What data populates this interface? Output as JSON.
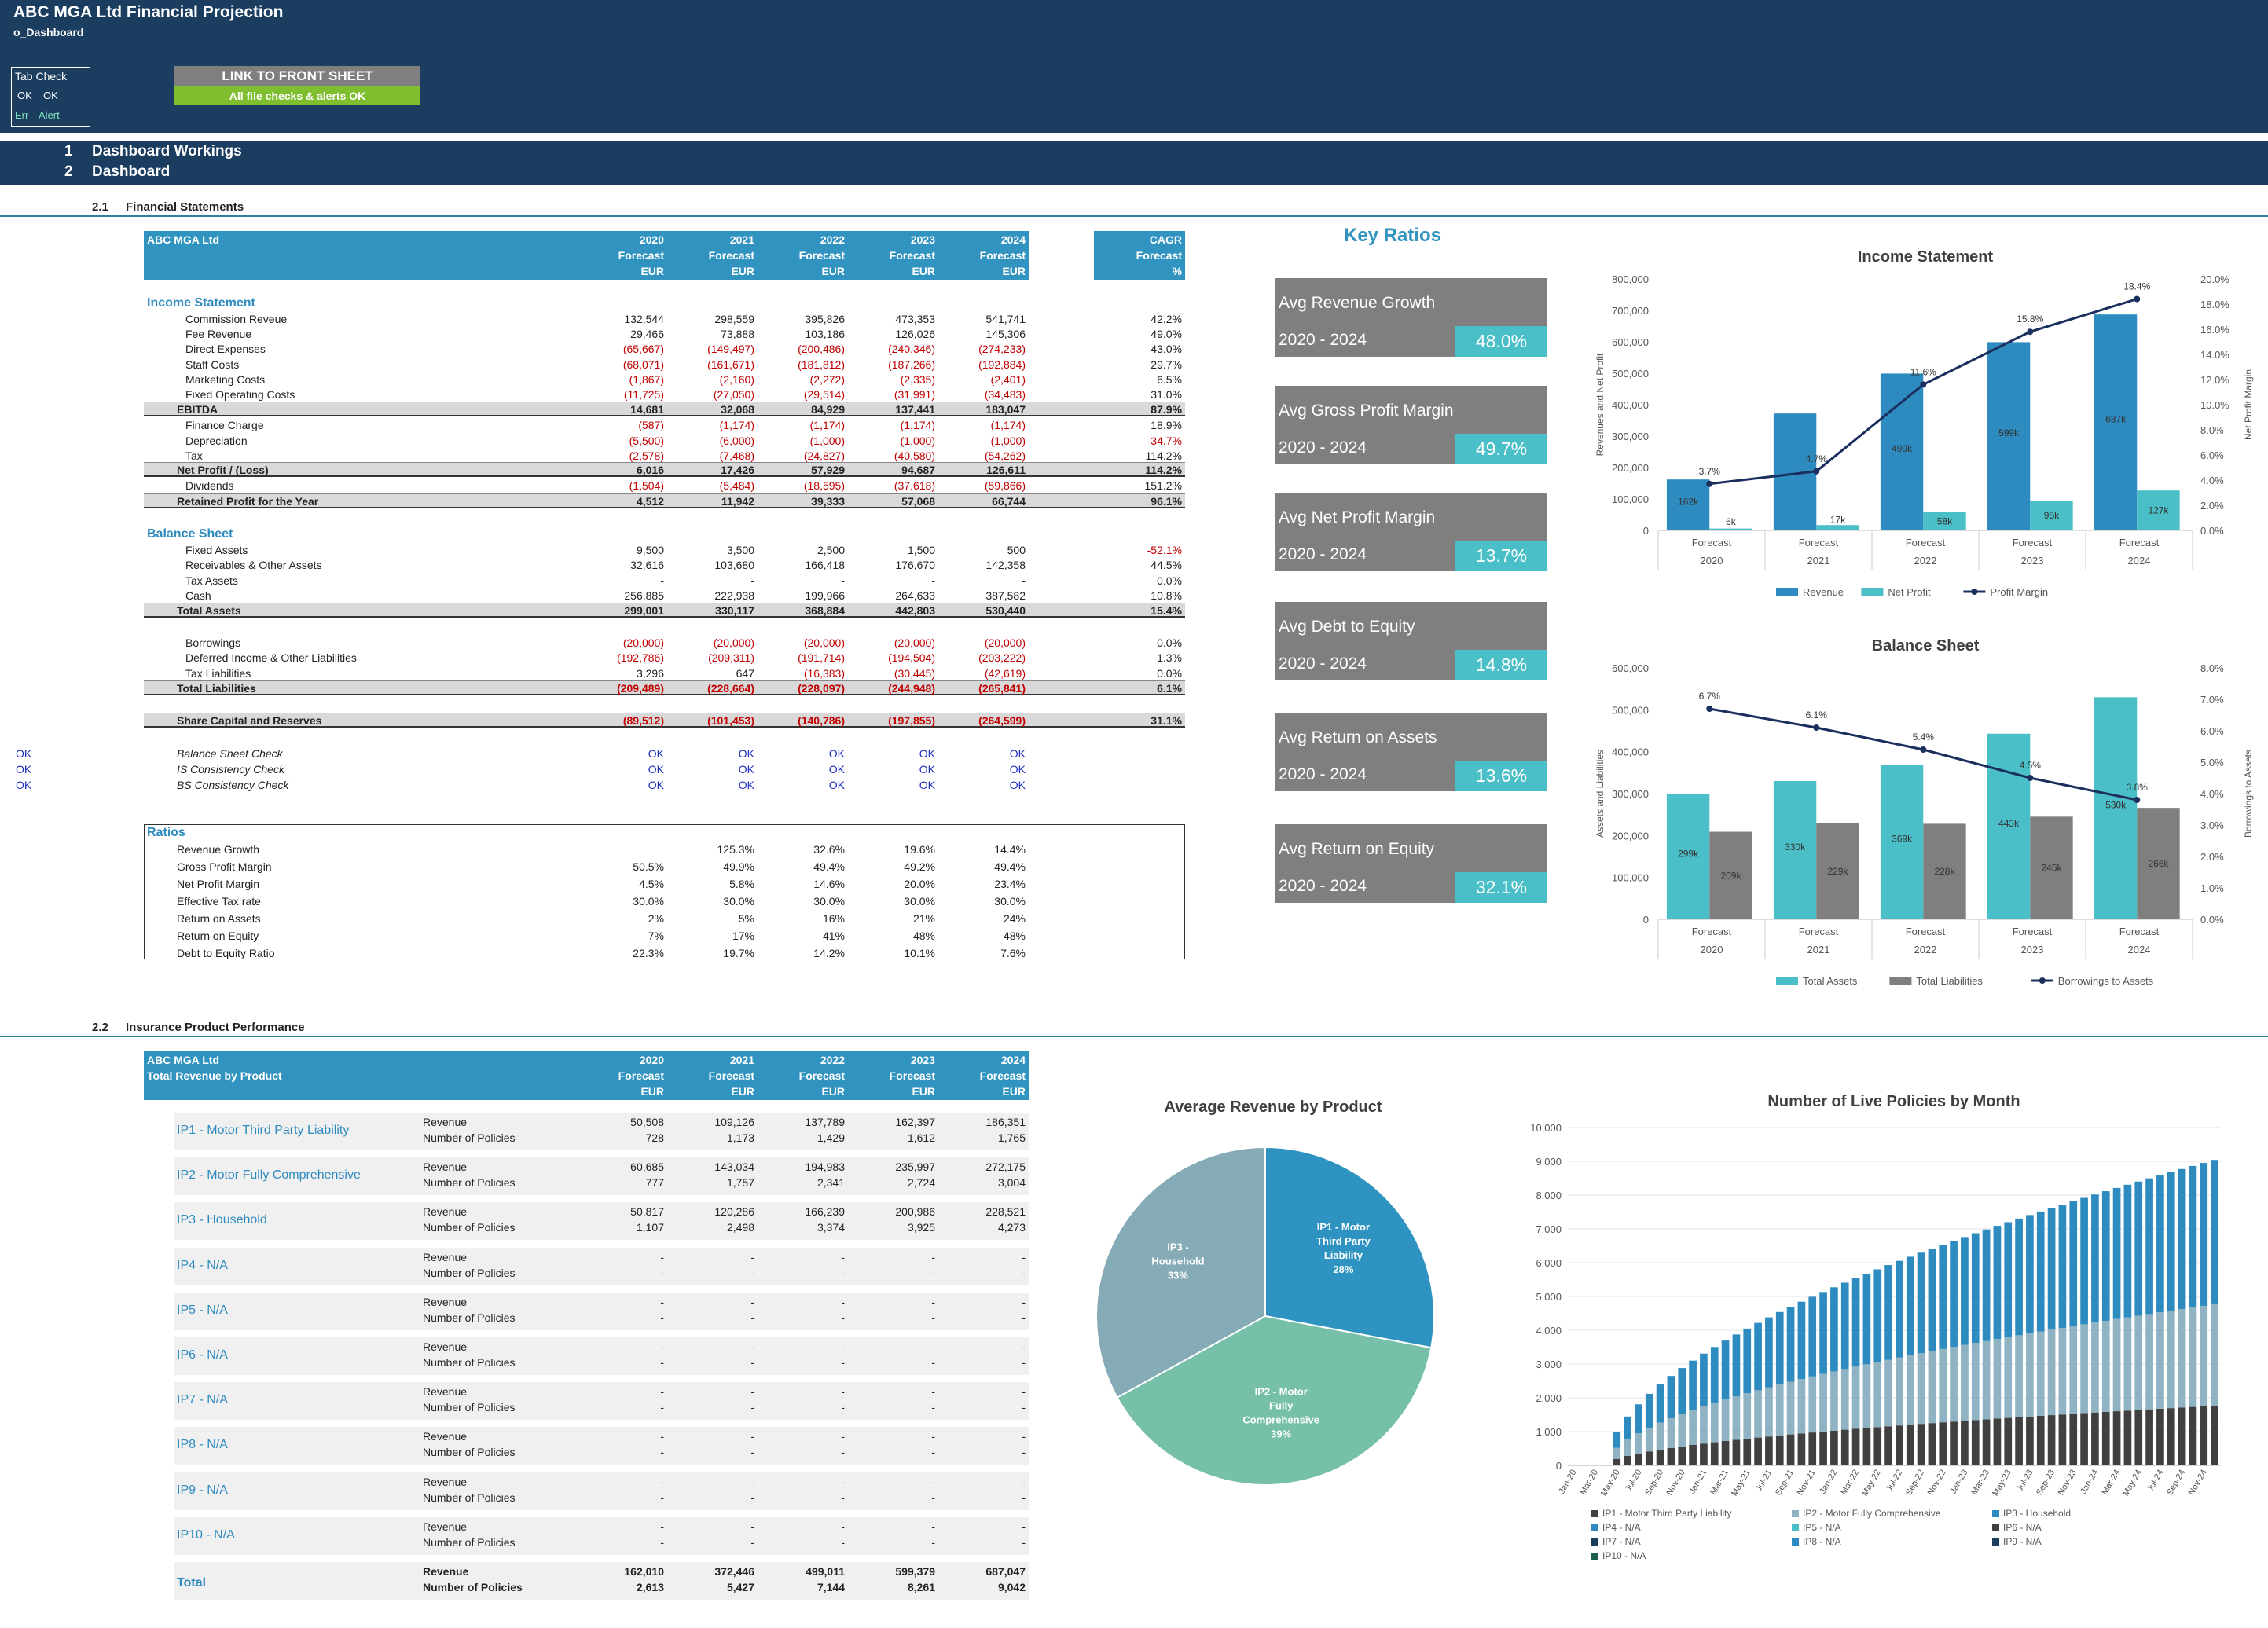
{
  "header": {
    "title": "ABC MGA Ltd Financial Projection",
    "sheet": "o_Dashboard"
  },
  "tabcheck": {
    "title": "Tab Check",
    "ok1": "OK",
    "ok2": "OK",
    "err": "Err",
    "alert": "Alert"
  },
  "link": {
    "label": "LINK TO FRONT SHEET",
    "status": "All file checks & alerts OK"
  },
  "sections": [
    {
      "num": "1",
      "label": "Dashboard Workings"
    },
    {
      "num": "2",
      "label": "Dashboard"
    }
  ],
  "sub1": {
    "num": "2.1",
    "label": "Financial Statements"
  },
  "sub2": {
    "num": "2.2",
    "label": "Insurance Product Performance"
  },
  "fs": {
    "company": "ABC MGA Ltd",
    "years": [
      "2020",
      "2021",
      "2022",
      "2023",
      "2024"
    ],
    "forecast": "Forecast",
    "unit": "EUR",
    "cagr": {
      "h1": "CAGR",
      "h2": "Forecast",
      "h3": "%"
    },
    "income_head": "Income Statement",
    "income": [
      {
        "label": "Commission Reveue",
        "v": [
          "132,544",
          "298,559",
          "395,826",
          "473,353",
          "541,741"
        ],
        "c": "42.2%",
        "neg": false
      },
      {
        "label": "Fee Revenue",
        "v": [
          "29,466",
          "73,888",
          "103,186",
          "126,026",
          "145,306"
        ],
        "c": "49.0%",
        "neg": false
      },
      {
        "label": "Direct Expenses",
        "v": [
          "(65,667)",
          "(149,497)",
          "(200,486)",
          "(240,346)",
          "(274,233)"
        ],
        "c": "43.0%",
        "neg": true
      },
      {
        "label": "Staff Costs",
        "v": [
          "(68,071)",
          "(161,671)",
          "(181,812)",
          "(187,266)",
          "(192,884)"
        ],
        "c": "29.7%",
        "neg": true
      },
      {
        "label": "Marketing Costs",
        "v": [
          "(1,867)",
          "(2,160)",
          "(2,272)",
          "(2,335)",
          "(2,401)"
        ],
        "c": "6.5%",
        "neg": true
      },
      {
        "label": "Fixed Operating Costs",
        "v": [
          "(11,725)",
          "(27,050)",
          "(29,514)",
          "(31,991)",
          "(34,483)"
        ],
        "c": "31.0%",
        "neg": true
      }
    ],
    "ebitda": {
      "label": "EBITDA",
      "v": [
        "14,681",
        "32,068",
        "84,929",
        "137,441",
        "183,047"
      ],
      "c": "87.9%"
    },
    "below": [
      {
        "label": "Finance Charge",
        "v": [
          "(587)",
          "(1,174)",
          "(1,174)",
          "(1,174)",
          "(1,174)"
        ],
        "c": "18.9%",
        "neg": true
      },
      {
        "label": "Depreciation",
        "v": [
          "(5,500)",
          "(6,000)",
          "(1,000)",
          "(1,000)",
          "(1,000)"
        ],
        "c": "-34.7%",
        "neg": true
      },
      {
        "label": "Tax",
        "v": [
          "(2,578)",
          "(7,468)",
          "(24,827)",
          "(40,580)",
          "(54,262)"
        ],
        "c": "114.2%",
        "neg": true
      }
    ],
    "netprofit": {
      "label": "Net Profit / (Loss)",
      "v": [
        "6,016",
        "17,426",
        "57,929",
        "94,687",
        "126,611"
      ],
      "c": "114.2%"
    },
    "dividends": {
      "label": "Dividends",
      "v": [
        "(1,504)",
        "(5,484)",
        "(18,595)",
        "(37,618)",
        "(59,866)"
      ],
      "c": "151.2%"
    },
    "retained": {
      "label": "Retained Profit for the Year",
      "v": [
        "4,512",
        "11,942",
        "39,333",
        "57,068",
        "66,744"
      ],
      "c": "96.1%"
    },
    "balance_head": "Balance Sheet",
    "assets": [
      {
        "label": "Fixed Assets",
        "v": [
          "9,500",
          "3,500",
          "2,500",
          "1,500",
          "500"
        ],
        "c": "-52.1%",
        "neg": false,
        "cneg": true
      },
      {
        "label": "Receivables & Other Assets",
        "v": [
          "32,616",
          "103,680",
          "166,418",
          "176,670",
          "142,358"
        ],
        "c": "44.5%",
        "neg": false
      },
      {
        "label": "Tax Assets",
        "v": [
          "-",
          "-",
          "-",
          "-",
          "-"
        ],
        "c": "0.0%",
        "neg": false
      },
      {
        "label": "Cash",
        "v": [
          "256,885",
          "222,938",
          "199,966",
          "264,633",
          "387,582"
        ],
        "c": "10.8%",
        "neg": false
      }
    ],
    "totalassets": {
      "label": "Total Assets",
      "v": [
        "299,001",
        "330,117",
        "368,884",
        "442,803",
        "530,440"
      ],
      "c": "15.4%"
    },
    "liabs": [
      {
        "label": "Borrowings",
        "v": [
          "(20,000)",
          "(20,000)",
          "(20,000)",
          "(20,000)",
          "(20,000)"
        ],
        "c": "0.0%",
        "neg": true
      },
      {
        "label": "Deferred Income & Other Liabilities",
        "v": [
          "(192,786)",
          "(209,311)",
          "(191,714)",
          "(194,504)",
          "(203,222)"
        ],
        "c": "1.3%",
        "neg": true
      },
      {
        "label": "Tax Liabilities",
        "v": [
          "3,296",
          "647",
          "(16,383)",
          "(30,445)",
          "(42,619)"
        ],
        "c": "0.0%",
        "neg": true
      }
    ],
    "totalliabs": {
      "label": "Total Liabilities",
      "v": [
        "(209,489)",
        "(228,664)",
        "(228,097)",
        "(244,948)",
        "(265,841)"
      ],
      "c": "6.1%"
    },
    "share": {
      "label": "Share Capital and Reserves",
      "v": [
        "(89,512)",
        "(101,453)",
        "(140,786)",
        "(197,855)",
        "(264,599)"
      ],
      "c": "31.1%"
    },
    "checks": [
      {
        "flag": "OK",
        "label": "Balance Sheet Check",
        "v": [
          "OK",
          "OK",
          "OK",
          "OK",
          "OK"
        ]
      },
      {
        "flag": "OK",
        "label": "IS Consistency Check",
        "v": [
          "OK",
          "OK",
          "OK",
          "OK",
          "OK"
        ]
      },
      {
        "flag": "OK",
        "label": "BS Consistency Check",
        "v": [
          "OK",
          "OK",
          "OK",
          "OK",
          "OK"
        ]
      }
    ],
    "ratios_head": "Ratios",
    "ratios": [
      {
        "label": "Revenue Growth",
        "v": [
          "",
          "125.3%",
          "32.6%",
          "19.6%",
          "14.4%"
        ]
      },
      {
        "label": "Gross Profit Margin",
        "v": [
          "50.5%",
          "49.9%",
          "49.4%",
          "49.2%",
          "49.4%"
        ]
      },
      {
        "label": "Net Profit Margin",
        "v": [
          "4.5%",
          "5.8%",
          "14.6%",
          "20.0%",
          "23.4%"
        ]
      },
      {
        "label": "Effective Tax rate",
        "v": [
          "30.0%",
          "30.0%",
          "30.0%",
          "30.0%",
          "30.0%"
        ]
      },
      {
        "label": "Return on Assets",
        "v": [
          "2%",
          "5%",
          "16%",
          "21%",
          "24%"
        ]
      },
      {
        "label": "Return on Equity",
        "v": [
          "7%",
          "17%",
          "41%",
          "48%",
          "48%"
        ]
      },
      {
        "label": "Debt to Equity Ratio",
        "v": [
          "22.3%",
          "19.7%",
          "14.2%",
          "10.1%",
          "7.6%"
        ]
      }
    ]
  },
  "keyratios": {
    "title": "Key Ratios",
    "items": [
      {
        "name": "Avg Revenue Growth",
        "period": "2020 - 2024",
        "value": "48.0%"
      },
      {
        "name": "Avg Gross Profit Margin",
        "period": "2020 - 2024",
        "value": "49.7%"
      },
      {
        "name": "Avg Net Profit Margin",
        "period": "2020 - 2024",
        "value": "13.7%"
      },
      {
        "name": "Avg Debt to Equity",
        "period": "2020 - 2024",
        "value": "14.8%"
      },
      {
        "name": "Avg Return on Assets",
        "period": "2020 - 2024",
        "value": "13.6%"
      },
      {
        "name": "Avg Return on Equity",
        "period": "2020 - 2024",
        "value": "32.1%"
      }
    ]
  },
  "products": {
    "company": "ABC MGA Ltd",
    "subtitle": "Total Revenue by Product",
    "rev_label": "Revenue",
    "pol_label": "Number of Policies",
    "items": [
      {
        "name": "IP1 - Motor Third Party Liability",
        "rev": [
          "50,508",
          "109,126",
          "137,789",
          "162,397",
          "186,351"
        ],
        "pol": [
          "728",
          "1,173",
          "1,429",
          "1,612",
          "1,765"
        ]
      },
      {
        "name": "IP2 - Motor Fully Comprehensive",
        "rev": [
          "60,685",
          "143,034",
          "194,983",
          "235,997",
          "272,175"
        ],
        "pol": [
          "777",
          "1,757",
          "2,341",
          "2,724",
          "3,004"
        ]
      },
      {
        "name": "IP3 - Household",
        "rev": [
          "50,817",
          "120,286",
          "166,239",
          "200,986",
          "228,521"
        ],
        "pol": [
          "1,107",
          "2,498",
          "3,374",
          "3,925",
          "4,273"
        ]
      },
      {
        "name": "IP4 - N/A",
        "rev": [
          "-",
          "-",
          "-",
          "-",
          "-"
        ],
        "pol": [
          "-",
          "-",
          "-",
          "-",
          "-"
        ]
      },
      {
        "name": "IP5 - N/A",
        "rev": [
          "-",
          "-",
          "-",
          "-",
          "-"
        ],
        "pol": [
          "-",
          "-",
          "-",
          "-",
          "-"
        ]
      },
      {
        "name": "IP6 - N/A",
        "rev": [
          "-",
          "-",
          "-",
          "-",
          "-"
        ],
        "pol": [
          "-",
          "-",
          "-",
          "-",
          "-"
        ]
      },
      {
        "name": "IP7 - N/A",
        "rev": [
          "-",
          "-",
          "-",
          "-",
          "-"
        ],
        "pol": [
          "-",
          "-",
          "-",
          "-",
          "-"
        ]
      },
      {
        "name": "IP8 - N/A",
        "rev": [
          "-",
          "-",
          "-",
          "-",
          "-"
        ],
        "pol": [
          "-",
          "-",
          "-",
          "-",
          "-"
        ]
      },
      {
        "name": "IP9 - N/A",
        "rev": [
          "-",
          "-",
          "-",
          "-",
          "-"
        ],
        "pol": [
          "-",
          "-",
          "-",
          "-",
          "-"
        ]
      },
      {
        "name": "IP10 - N/A",
        "rev": [
          "-",
          "-",
          "-",
          "-",
          "-"
        ],
        "pol": [
          "-",
          "-",
          "-",
          "-",
          "-"
        ]
      }
    ],
    "total": {
      "name": "Total",
      "rev": [
        "162,010",
        "372,446",
        "499,011",
        "599,379",
        "687,047"
      ],
      "pol": [
        "2,613",
        "5,427",
        "7,144",
        "8,261",
        "9,042"
      ]
    }
  },
  "chart_data": [
    {
      "type": "bar",
      "id": "income",
      "title": "Income Statement",
      "categories": [
        "2020",
        "2021",
        "2022",
        "2023",
        "2024"
      ],
      "category_top": "Forecast",
      "series": [
        {
          "name": "Revenue",
          "values": [
            162,
            372,
            499,
            599,
            687
          ],
          "labels": [
            "162k",
            "",
            "499k",
            "599k",
            "687k"
          ],
          "color": "#2e8bbf"
        },
        {
          "name": "Net Profit",
          "values": [
            6,
            17,
            58,
            95,
            127
          ],
          "labels": [
            "6k",
            "17k",
            "58k",
            "95k",
            "127k"
          ],
          "color": "#4bbfc7"
        },
        {
          "name": "Profit Margin",
          "values": [
            3.7,
            4.7,
            11.6,
            15.8,
            18.4
          ],
          "labels": [
            "3.7%",
            "4.7%",
            "11.6%",
            "15.8%",
            "18.4%"
          ],
          "color": "#1b2f5e",
          "axis": "right"
        }
      ],
      "ylabel": "Revenues and Net Profit",
      "y2label": "Net Profit Margin",
      "yticks": [
        "0",
        "100,000",
        "200,000",
        "300,000",
        "400,000",
        "500,000",
        "600,000",
        "700,000",
        "800,000"
      ],
      "y2ticks": [
        "0.0%",
        "2.0%",
        "4.0%",
        "6.0%",
        "8.0%",
        "10.0%",
        "12.0%",
        "14.0%",
        "16.0%",
        "18.0%",
        "20.0%"
      ],
      "ylim": [
        0,
        800
      ],
      "y2lim": [
        0,
        20
      ],
      "legend": "bottom"
    },
    {
      "type": "bar",
      "id": "balance",
      "title": "Balance Sheet",
      "categories": [
        "2020",
        "2021",
        "2022",
        "2023",
        "2024"
      ],
      "category_top": "Forecast",
      "series": [
        {
          "name": "Total Assets",
          "values": [
            299,
            330,
            369,
            443,
            530
          ],
          "labels": [
            "299k",
            "330k",
            "369k",
            "443k",
            "530k"
          ],
          "color": "#4bbfc7"
        },
        {
          "name": "Total Liabilities",
          "values": [
            209,
            229,
            228,
            245,
            266
          ],
          "labels": [
            "209k",
            "229k",
            "228k",
            "245k",
            "266k"
          ],
          "color": "#7f7f7f"
        },
        {
          "name": "Borrowings to Assets",
          "values": [
            6.7,
            6.1,
            5.4,
            4.5,
            3.8
          ],
          "labels": [
            "6.7%",
            "6.1%",
            "5.4%",
            "4.5%",
            "3.8%"
          ],
          "color": "#1b2f5e",
          "axis": "right"
        }
      ],
      "ylabel": "Assets and Liabilities",
      "y2label": "Borrowings to Assets",
      "yticks": [
        "0",
        "100,000",
        "200,000",
        "300,000",
        "400,000",
        "500,000",
        "600,000"
      ],
      "y2ticks": [
        "0.0%",
        "1.0%",
        "2.0%",
        "3.0%",
        "4.0%",
        "5.0%",
        "6.0%",
        "7.0%",
        "8.0%"
      ],
      "ylim": [
        0,
        600
      ],
      "y2lim": [
        0,
        8
      ],
      "legend": "bottom"
    },
    {
      "type": "pie",
      "id": "pie",
      "title": "Average Revenue by Product",
      "slices": [
        {
          "name": "IP1 - Motor Third Party Liability",
          "value": 28,
          "label": "28%",
          "color": "#2e93c0"
        },
        {
          "name": "IP2 - Motor Fully Comprehensive",
          "value": 39,
          "label": "39%",
          "color": "#76bfa9"
        },
        {
          "name": "IP3 - Household",
          "value": 33,
          "label": "33%",
          "color": "#85abb7"
        }
      ]
    },
    {
      "type": "bar",
      "id": "policies",
      "title": "Number of Live Policies by Month",
      "stacked": true,
      "xticks": [
        "Jan-20",
        "Mar-20",
        "May-20",
        "Jul-20",
        "Sep-20",
        "Nov-20",
        "Jan-21",
        "Mar-21",
        "May-21",
        "Jul-21",
        "Sep-21",
        "Nov-21",
        "Jan-22",
        "Mar-22",
        "May-22",
        "Jul-22",
        "Sep-22",
        "Nov-22",
        "Jan-23",
        "Mar-23",
        "May-23",
        "Jul-23",
        "Sep-23",
        "Nov-23",
        "Jan-24",
        "Mar-24",
        "May-24",
        "Jul-24",
        "Sep-24",
        "Nov-24"
      ],
      "yticks": [
        "0",
        "1,000",
        "2,000",
        "3,000",
        "4,000",
        "5,000",
        "6,000",
        "7,000",
        "8,000",
        "9,000",
        "10,000"
      ],
      "ylim": [
        0,
        10000
      ],
      "start_month": 4,
      "final": {
        "IP1": 1765,
        "IP2": 3004,
        "IP3": 4273
      },
      "series": [
        {
          "name": "IP1 - Motor Third Party Liability",
          "color": "#404040"
        },
        {
          "name": "IP2 - Motor Fully Comprehensive",
          "color": "#8fb3c2"
        },
        {
          "name": "IP3 - Household",
          "color": "#2e8bbf"
        }
      ],
      "legend_items": [
        "IP1 - Motor Third Party Liability",
        "IP2 - Motor Fully Comprehensive",
        "IP3 - Household",
        "IP4 - N/A",
        "IP5 - N/A",
        "IP6 - N/A",
        "IP7 - N/A",
        "IP8 - N/A",
        "IP9 - N/A",
        "IP10 - N/A"
      ],
      "legend_colors": [
        "#404040",
        "#8fb3c2",
        "#2e8bbf",
        "#2e8bbf",
        "#4bbfc7",
        "#404040",
        "#1b3d5f",
        "#2e8bbf",
        "#1b3d5f",
        "#1b5f4f"
      ]
    }
  ]
}
